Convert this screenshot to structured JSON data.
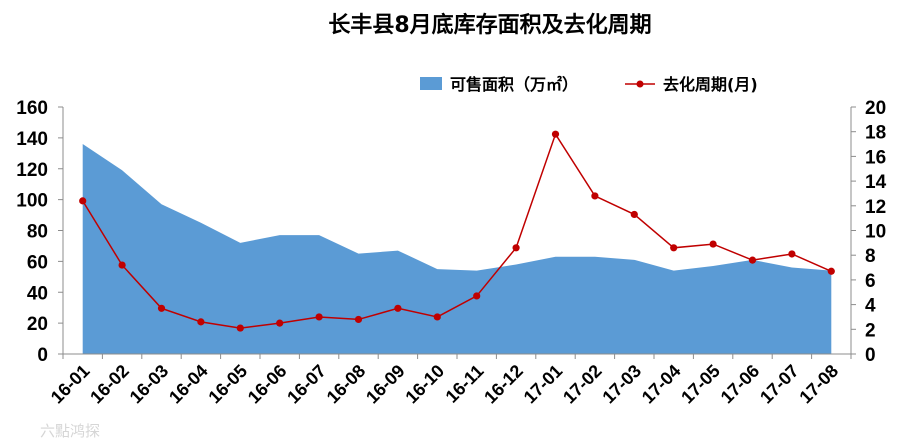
{
  "chart_data": {
    "type": "area",
    "title": "长丰县8月底库存面积及去化周期",
    "categories": [
      "16-01",
      "16-02",
      "16-03",
      "16-04",
      "16-05",
      "16-06",
      "16-07",
      "16-08",
      "16-09",
      "16-10",
      "16-11",
      "16-12",
      "17-01",
      "17-02",
      "17-03",
      "17-04",
      "17-05",
      "17-06",
      "17-07",
      "17-08"
    ],
    "series": [
      {
        "name": "可售面积（万㎡）",
        "type": "area",
        "axis": "left",
        "color": "#5b9bd5",
        "values": [
          136,
          119,
          97,
          85,
          72,
          77,
          77,
          65,
          67,
          55,
          54,
          58,
          63,
          63,
          61,
          54,
          57,
          61,
          56,
          54
        ]
      },
      {
        "name": "去化周期(月)",
        "type": "line",
        "axis": "right",
        "color": "#c00000",
        "values": [
          12.4,
          7.2,
          3.7,
          2.6,
          2.1,
          2.5,
          3.0,
          2.8,
          3.7,
          3.0,
          4.7,
          8.6,
          17.8,
          12.8,
          11.3,
          8.6,
          8.9,
          7.6,
          8.1,
          6.7
        ]
      }
    ],
    "ylim": [
      0,
      160
    ],
    "yticks": [
      0,
      20,
      40,
      60,
      80,
      100,
      120,
      140,
      160
    ],
    "y2lim": [
      0,
      20
    ],
    "y2ticks": [
      0,
      2,
      4,
      6,
      8,
      10,
      12,
      14,
      16,
      18,
      20
    ],
    "grid": false,
    "legend_position": "top"
  },
  "watermark": "六點鸿探"
}
